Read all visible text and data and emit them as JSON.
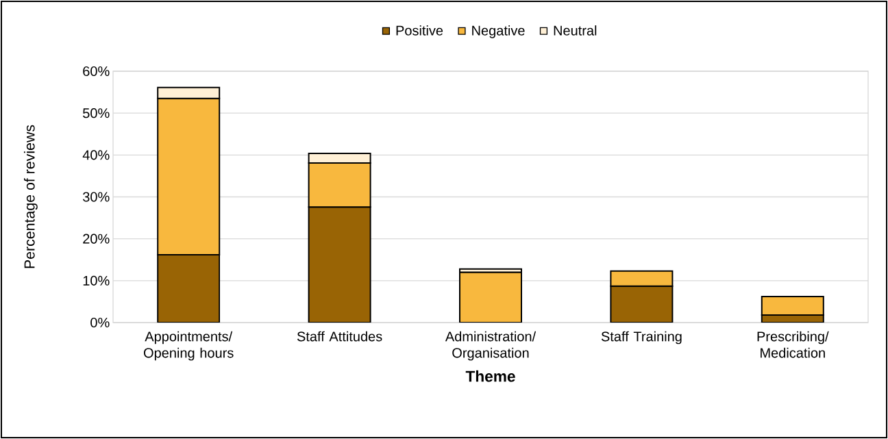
{
  "chart_data": {
    "type": "bar",
    "stacked": true,
    "xlabel": "Theme",
    "ylabel": "Percentage of reviews",
    "categories": [
      "Appointments/ Opening hours",
      "Staff Attitudes",
      "Administration/ Organisation",
      "Staff Training",
      "Prescribing/ Medication"
    ],
    "series": [
      {
        "name": "Positive",
        "color": "#996405",
        "values": [
          16.2,
          27.6,
          null,
          8.7,
          1.8
        ]
      },
      {
        "name": "Negative",
        "color": "#f8b83e",
        "values": [
          37.3,
          10.5,
          12.0,
          3.6,
          4.4
        ]
      },
      {
        "name": "Neutral",
        "color": "#fff0d6",
        "values": [
          2.6,
          2.3,
          0.8,
          null,
          null
        ]
      }
    ],
    "ylim": [
      0,
      60
    ],
    "yticks": [
      {
        "value": 0,
        "label": "0%"
      },
      {
        "value": 10,
        "label": "10%"
      },
      {
        "value": 20,
        "label": "20%"
      },
      {
        "value": 30,
        "label": "30%"
      },
      {
        "value": 40,
        "label": "40%"
      },
      {
        "value": 50,
        "label": "50%"
      },
      {
        "value": 60,
        "label": "60%"
      }
    ],
    "grid": "y",
    "legend": "top"
  }
}
